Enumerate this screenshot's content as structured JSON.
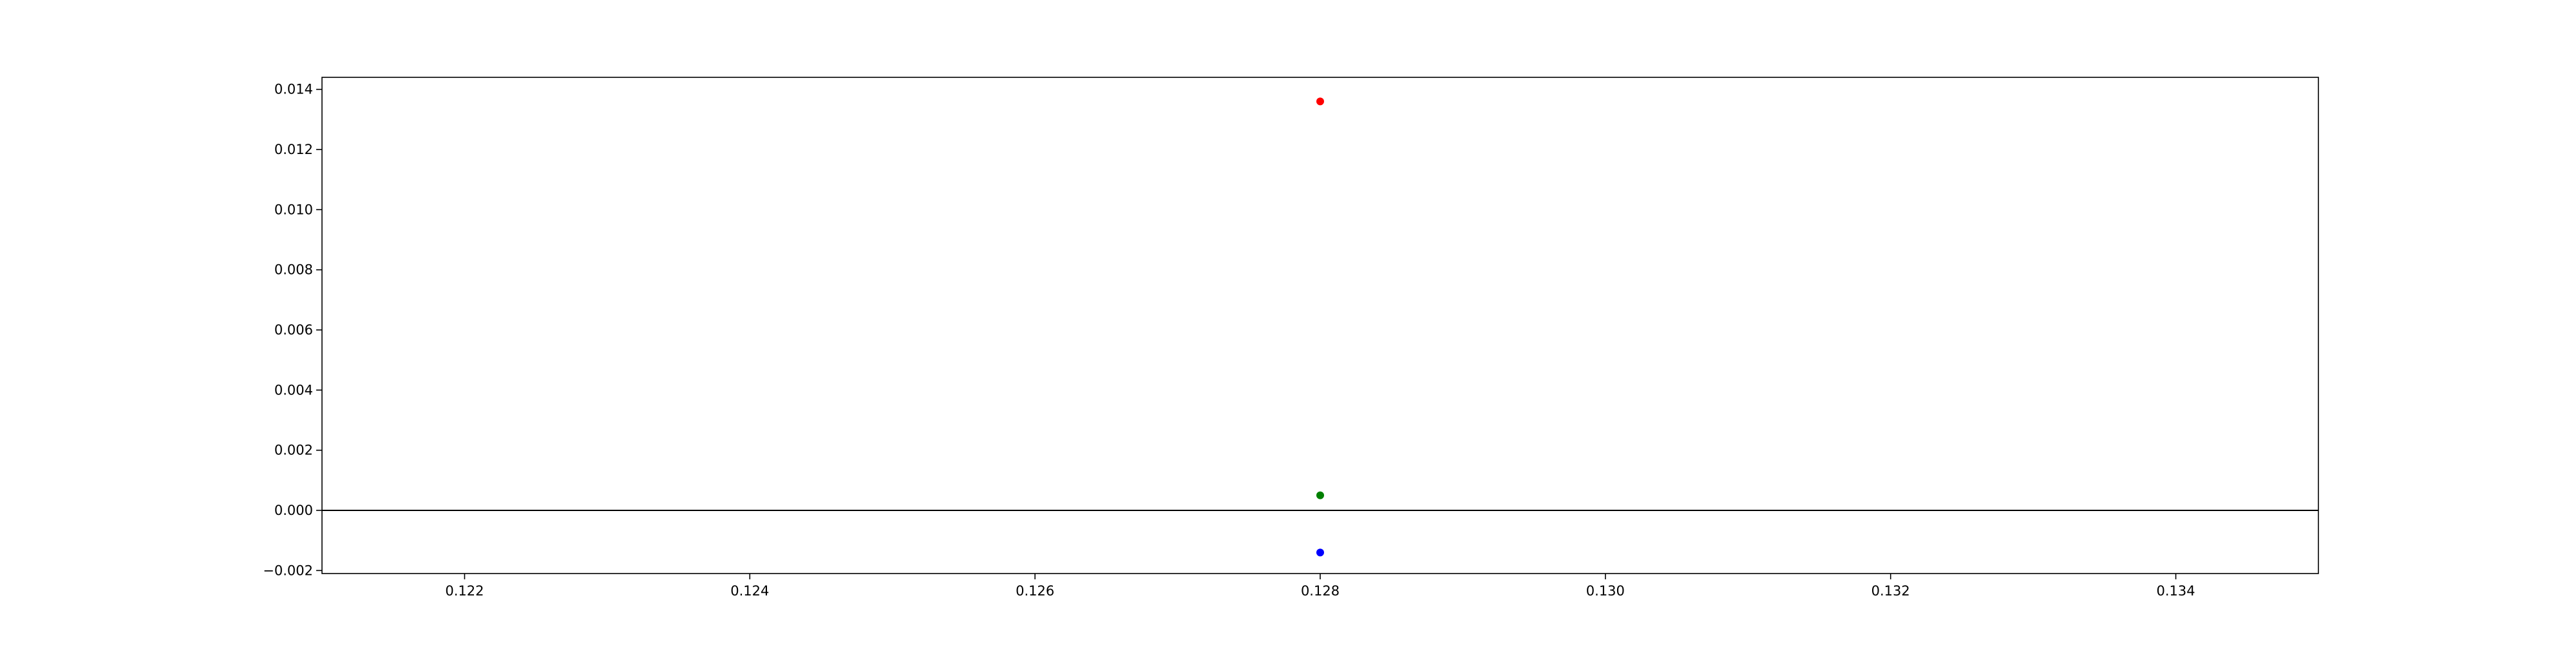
{
  "chart_data": {
    "type": "scatter",
    "title": "",
    "xlabel": "",
    "ylabel": "",
    "xlim": [
      0.121,
      0.135
    ],
    "ylim": [
      -0.0021,
      0.0144
    ],
    "x_ticks": [
      0.122,
      0.124,
      0.126,
      0.128,
      0.13,
      0.132,
      0.134
    ],
    "x_tick_labels": [
      "0.122",
      "0.124",
      "0.126",
      "0.128",
      "0.130",
      "0.132",
      "0.134"
    ],
    "y_ticks": [
      -0.002,
      0.0,
      0.002,
      0.004,
      0.006,
      0.008,
      0.01,
      0.012,
      0.014
    ],
    "y_tick_labels": [
      "−0.002",
      "0.000",
      "0.002",
      "0.004",
      "0.006",
      "0.008",
      "0.010",
      "0.012",
      "0.014"
    ],
    "grid": false,
    "reference_line": {
      "y": 0.0,
      "color": "#000000"
    },
    "series": [
      {
        "color": "#ff0000",
        "points": [
          {
            "x": 0.128,
            "y": 0.0136
          }
        ]
      },
      {
        "color": "#008000",
        "points": [
          {
            "x": 0.128,
            "y": 0.0005
          }
        ]
      },
      {
        "color": "#0000ff",
        "points": [
          {
            "x": 0.128,
            "y": -0.0014
          }
        ]
      }
    ]
  }
}
